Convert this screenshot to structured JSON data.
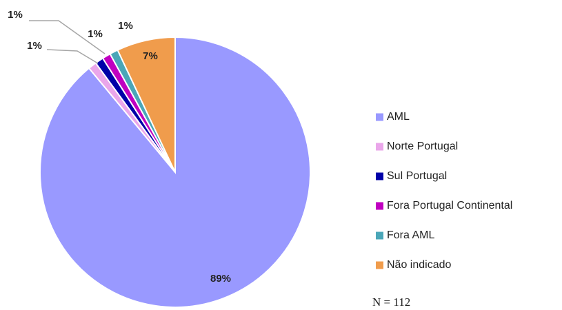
{
  "chart_data": {
    "type": "pie",
    "categories": [
      "AML",
      "Norte Portugal",
      "Sul Portugal",
      "Fora Portugal Continental",
      "Fora AML",
      "Não indicado"
    ],
    "values": [
      89,
      1,
      1,
      1,
      1,
      7
    ],
    "value_labels": [
      "89%",
      "1%",
      "1%",
      "1%",
      "1%",
      "7%"
    ],
    "colors": [
      "#9999ff",
      "#eaa6ea",
      "#0000a8",
      "#c000c0",
      "#4aa6b8",
      "#f09c4c"
    ],
    "legend": "right",
    "note": "N = 112"
  }
}
